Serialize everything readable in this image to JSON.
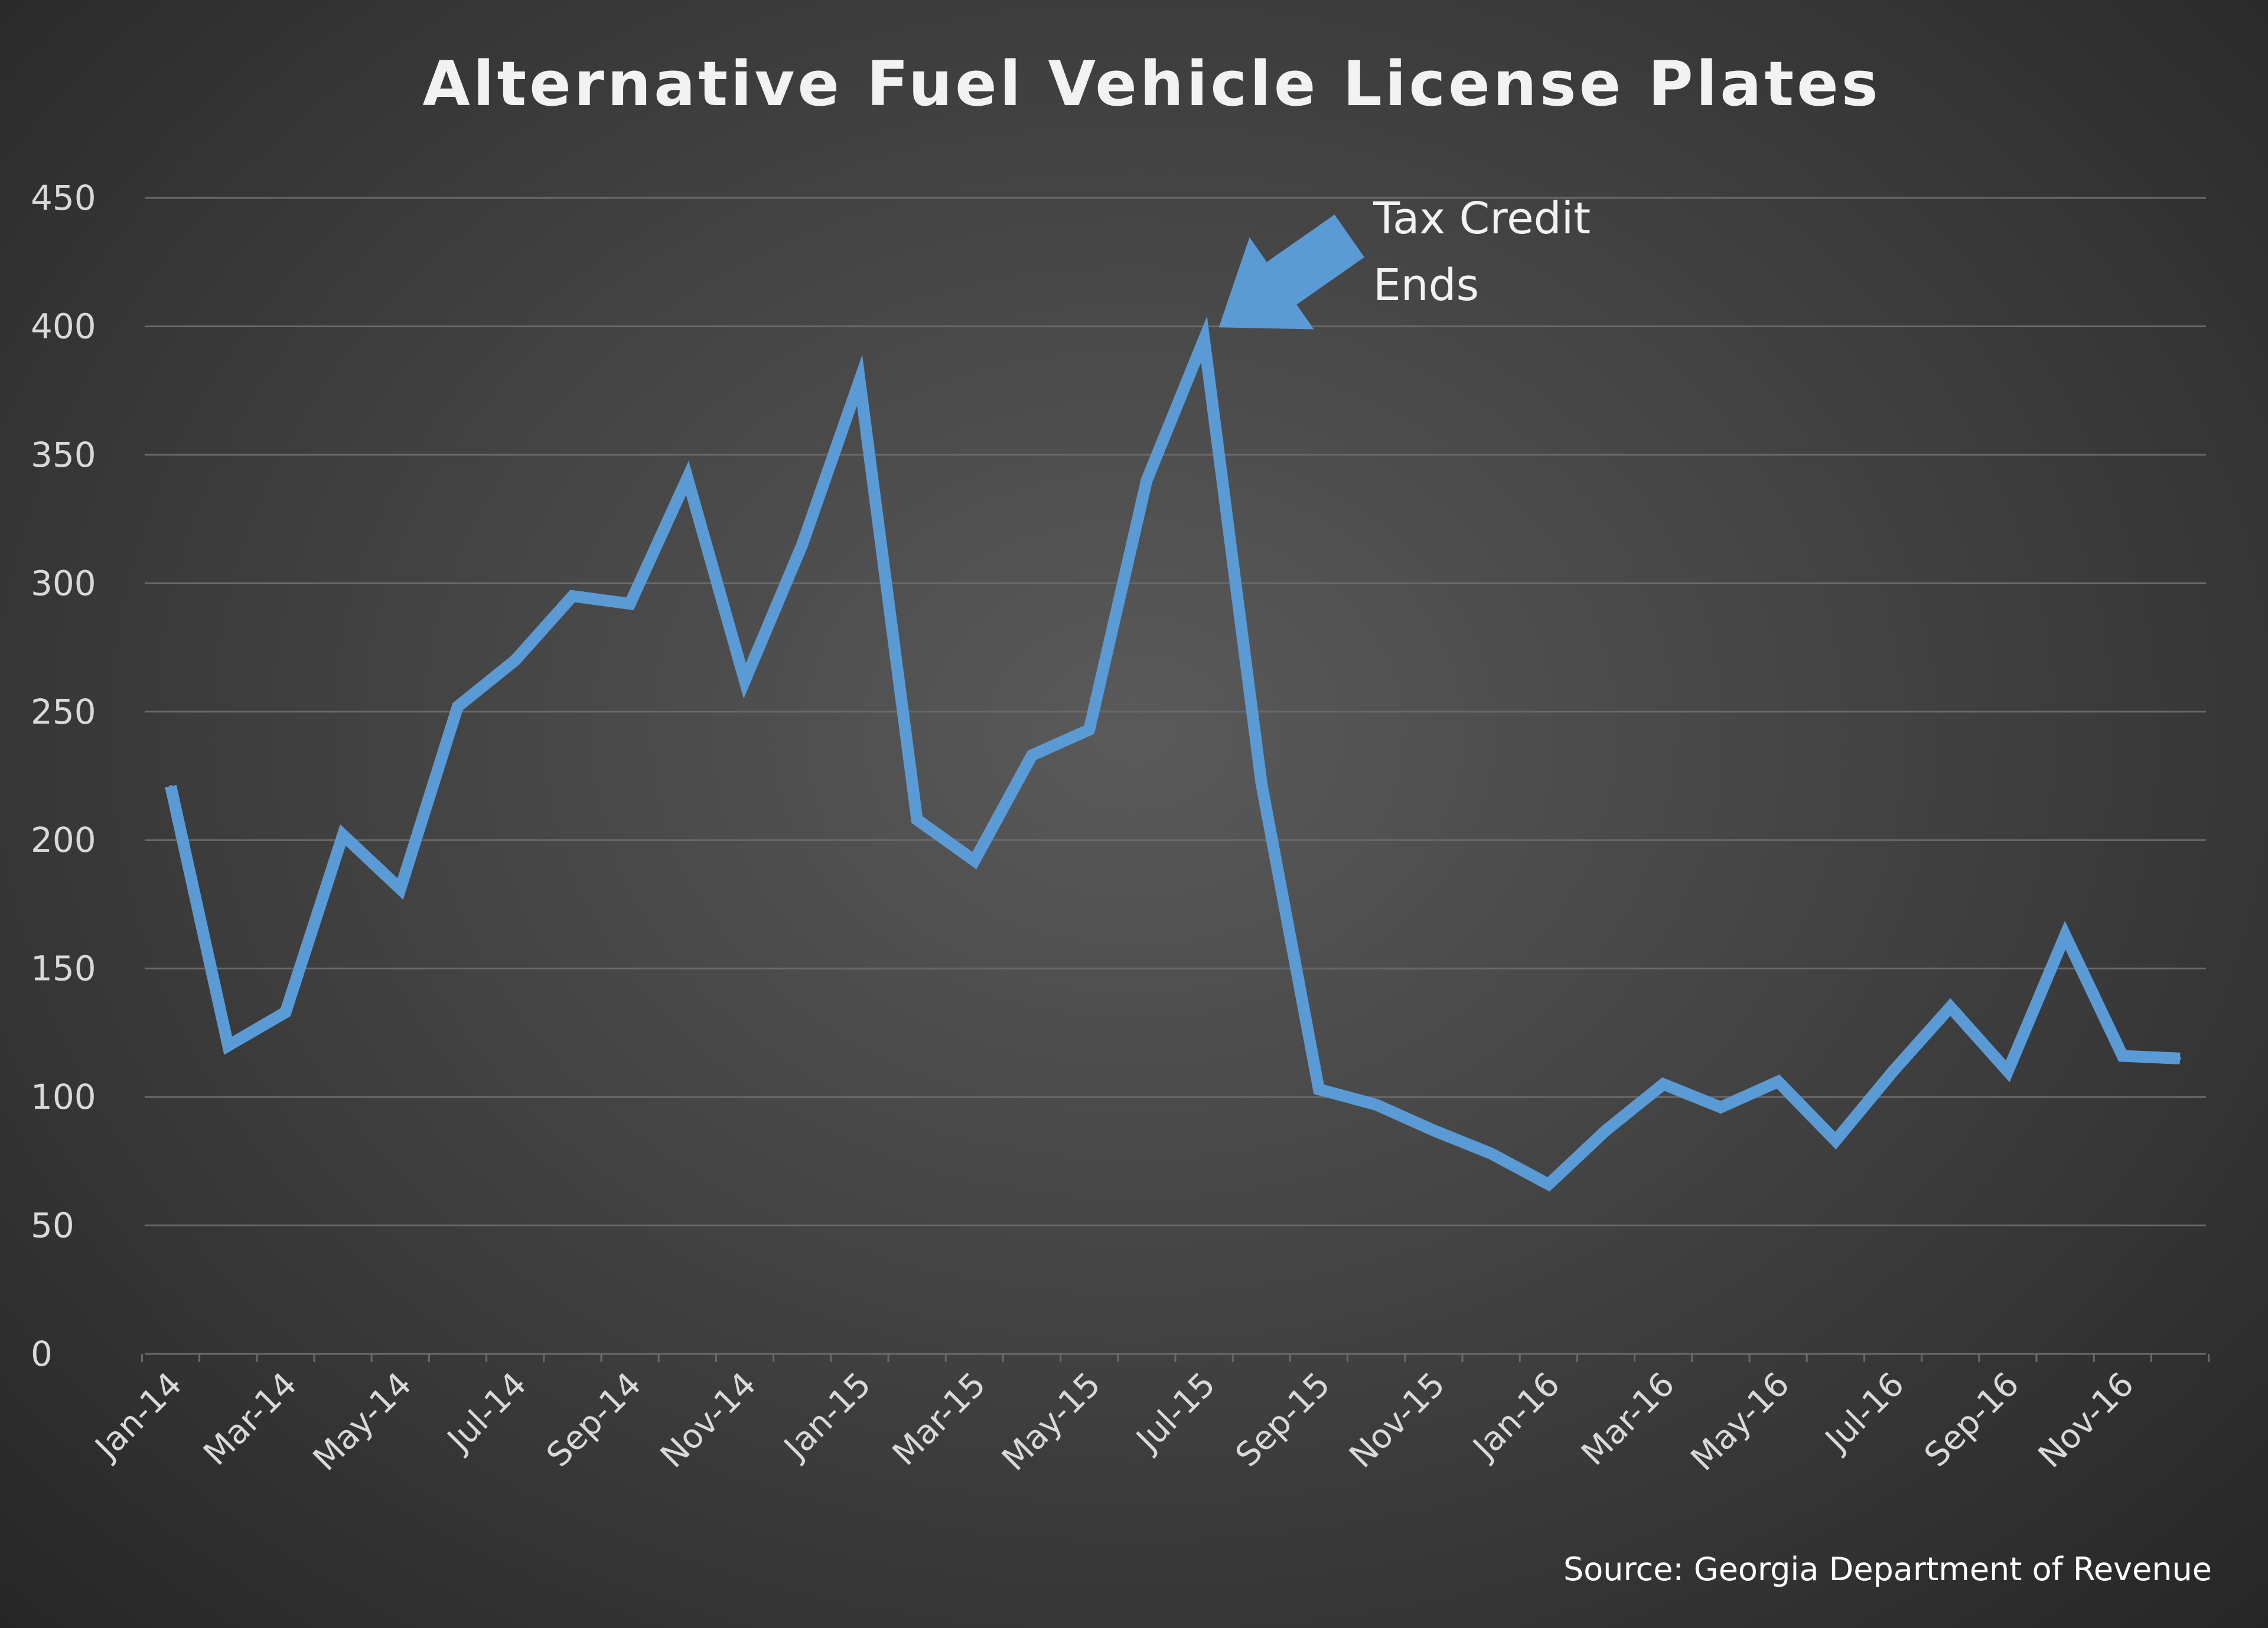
{
  "chart_data": {
    "type": "line",
    "title": "Alternative Fuel Vehicle License Plates",
    "xlabel": "",
    "ylabel": "",
    "ylim": [
      0,
      450
    ],
    "yticks": [
      0,
      50,
      100,
      150,
      200,
      250,
      300,
      350,
      400,
      450
    ],
    "grid": true,
    "legend": "none",
    "x": [
      "Jan-14",
      "Feb-14",
      "Mar-14",
      "Apr-14",
      "May-14",
      "Jun-14",
      "Jul-14",
      "Aug-14",
      "Sep-14",
      "Oct-14",
      "Nov-14",
      "Dec-14",
      "Jan-15",
      "Feb-15",
      "Mar-15",
      "Apr-15",
      "May-15",
      "Jun-15",
      "Jul-15",
      "Aug-15",
      "Sep-15",
      "Oct-15",
      "Nov-15",
      "Dec-15",
      "Jan-16",
      "Feb-16",
      "Mar-16",
      "Apr-16",
      "May-16",
      "Jun-16",
      "Jul-16",
      "Aug-16",
      "Sep-16",
      "Oct-16",
      "Nov-16",
      "Dec-16"
    ],
    "xtick_labels": [
      "Jan-14",
      "Mar-14",
      "May-14",
      "Jul-14",
      "Sep-14",
      "Nov-14",
      "Jan-15",
      "Mar-15",
      "May-15",
      "Jul-15",
      "Sep-15",
      "Nov-15",
      "Jan-16",
      "Mar-16",
      "May-16",
      "Jul-16",
      "Sep-16",
      "Nov-16"
    ],
    "series": [
      {
        "values": [
          221,
          120,
          133,
          202,
          181,
          252,
          270,
          295,
          292,
          341,
          262,
          315,
          379,
          208,
          192,
          233,
          243,
          340,
          395,
          222,
          103,
          97,
          87,
          78,
          66,
          87,
          105,
          96,
          106,
          83,
          110,
          135,
          110,
          163,
          116,
          115
        ]
      }
    ],
    "annotations": [
      {
        "text_lines": [
          "Tax Credit",
          "Ends"
        ],
        "points_to": "Jul-15"
      }
    ],
    "source": "Source: Georgia Department of Revenue",
    "colors": {
      "line": "#5b9bd5",
      "grid": "#6a6a6a",
      "background": "#3e3e3e",
      "text": "#d9d9d9"
    }
  }
}
